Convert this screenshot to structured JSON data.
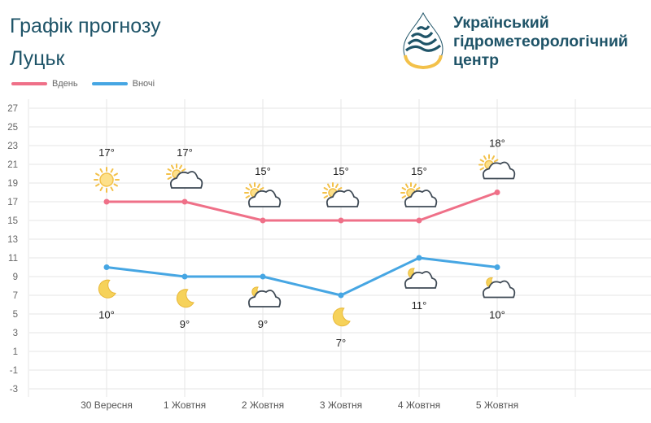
{
  "header": {
    "title": "Графік прогнозу",
    "city": "Луцьк"
  },
  "logo": {
    "line1": "Український",
    "line2": "гідрометеорологічний",
    "line3": "центр"
  },
  "colors": {
    "day": "#ef7088",
    "night": "#46a6e3",
    "text": "#1f5468",
    "grid": "#e6e6e6"
  },
  "chart_data": {
    "type": "line",
    "categories": [
      "30 Вересня",
      "1 Жовтня",
      "2 Жовтня",
      "3 Жовтня",
      "4 Жовтня",
      "5 Жовтня"
    ],
    "series": [
      {
        "name": "Вдень",
        "values": [
          17,
          17,
          15,
          15,
          15,
          18
        ],
        "labels": [
          "17°",
          "17°",
          "15°",
          "15°",
          "15°",
          "18°"
        ],
        "icons": [
          "sun-icon",
          "sun-cloud-icon",
          "sun-cloud-icon",
          "sun-cloud-icon",
          "sun-cloud-icon",
          "sun-cloud-icon"
        ]
      },
      {
        "name": "Вночі",
        "values": [
          10,
          9,
          9,
          7,
          11,
          10
        ],
        "labels": [
          "10°",
          "9°",
          "9°",
          "7°",
          "11°",
          "10°"
        ],
        "icons": [
          "moon-icon",
          "moon-icon",
          "moon-cloud-icon",
          "moon-icon",
          "moon-cloud-icon",
          "moon-cloud-icon"
        ]
      }
    ],
    "yticks": [
      "27",
      "25",
      "23",
      "21",
      "19",
      "17",
      "15",
      "13",
      "11",
      "9",
      "7",
      "5",
      "3",
      "1",
      "-1",
      "-3"
    ],
    "ylim": [
      -3,
      27
    ],
    "grid": true,
    "legend_position": "top-left"
  }
}
